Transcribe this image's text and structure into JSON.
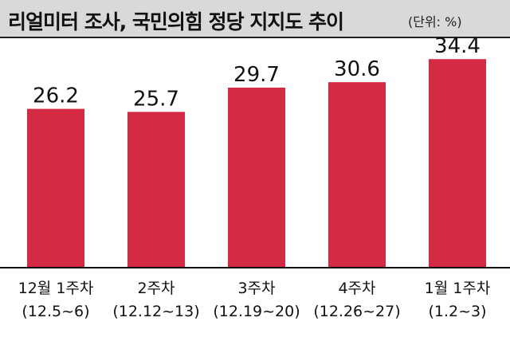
{
  "header": {
    "title": "리얼미터 조사, 국민의힘 정당 지지도 추이",
    "unit": "(단위: %)"
  },
  "chart_data": {
    "type": "bar",
    "title": "리얼미터 조사, 국민의힘 정당 지지도 추이",
    "unit": "(단위: %)",
    "categories": [
      [
        "12월 1주차",
        "(12.5~6)"
      ],
      [
        "2주차",
        "(12.12~13)"
      ],
      [
        "3주차",
        "(12.19~20)"
      ],
      [
        "4주차",
        "(12.26~27)"
      ],
      [
        "1월 1주차",
        "(1.2~3)"
      ]
    ],
    "values": [
      26.2,
      25.7,
      29.7,
      30.6,
      34.4
    ],
    "value_labels": [
      "26.2",
      "25.7",
      "29.7",
      "30.6",
      "34.4"
    ],
    "bar_color": "#d42a44",
    "baseline_color": "#111111",
    "grid": false,
    "legend": "none"
  }
}
